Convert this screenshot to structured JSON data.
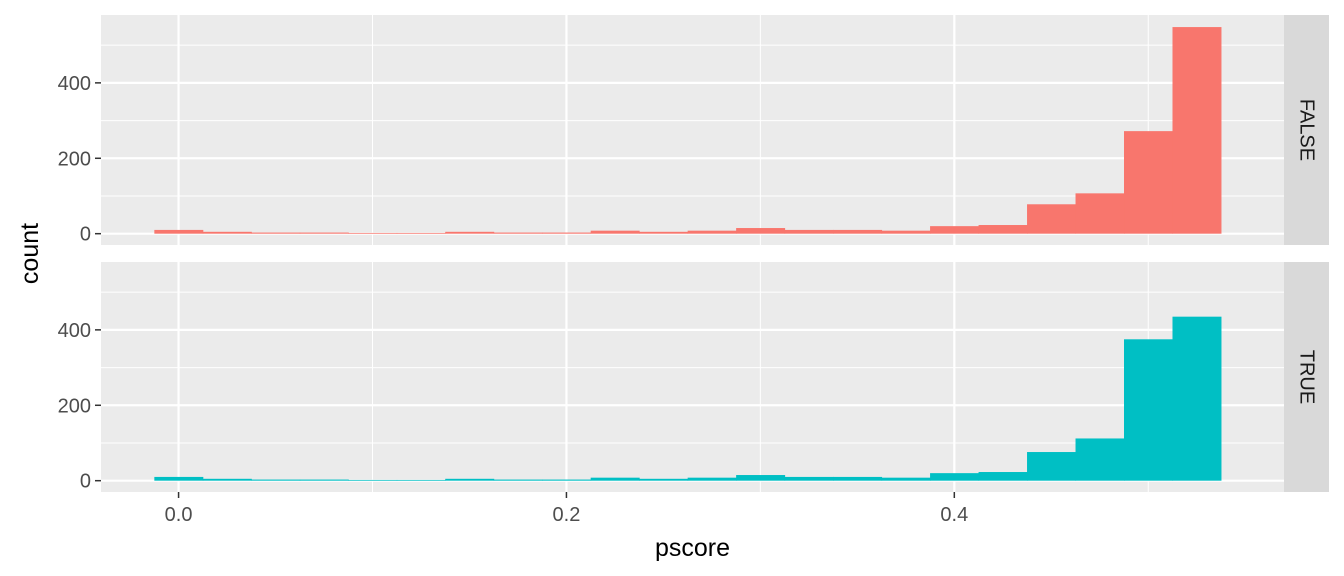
{
  "chart_data": {
    "type": "bar",
    "subtype": "faceted-histogram",
    "xlabel": "pscore",
    "ylabel": "count",
    "xlim": [
      -0.04,
      0.57
    ],
    "ylim": [
      -30,
      580
    ],
    "x_ticks": [
      0.0,
      0.2,
      0.4
    ],
    "x_tick_labels": [
      "0.0",
      "0.2",
      "0.4"
    ],
    "y_ticks": [
      0,
      200,
      400
    ],
    "y_tick_labels": [
      "0",
      "200",
      "400"
    ],
    "bin_width": 0.025,
    "x": [
      0.0,
      0.025,
      0.05,
      0.075,
      0.1,
      0.125,
      0.15,
      0.175,
      0.2,
      0.225,
      0.25,
      0.275,
      0.3,
      0.325,
      0.35,
      0.375,
      0.4,
      0.425,
      0.45,
      0.475,
      0.5,
      0.525
    ],
    "grid": true,
    "legend": "none",
    "series": [
      {
        "name": "FALSE",
        "color": "#F8766D",
        "values": [
          10,
          5,
          3,
          3,
          2,
          2,
          5,
          3,
          3,
          8,
          5,
          8,
          15,
          10,
          10,
          8,
          20,
          23,
          78,
          107,
          272,
          548
        ]
      },
      {
        "name": "TRUE",
        "color": "#00BFC4",
        "values": [
          10,
          5,
          3,
          3,
          2,
          2,
          5,
          3,
          3,
          8,
          5,
          8,
          15,
          10,
          10,
          8,
          20,
          23,
          76,
          112,
          375,
          435
        ]
      }
    ]
  }
}
